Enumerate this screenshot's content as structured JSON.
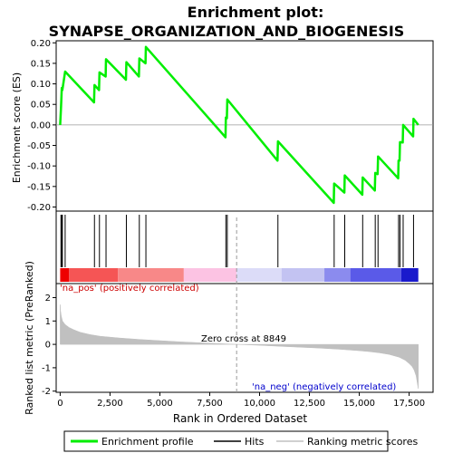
{
  "chart_data": {
    "type": "line",
    "title_line1": "Enrichment plot:",
    "title_line2": "SYNAPSE_ORGANIZATION_AND_BIOGENESIS",
    "es_panel": {
      "ylabel": "Enrichment score (ES)",
      "ylim": [
        -0.21,
        0.205
      ],
      "yticks": [
        "0.20",
        "0.15",
        "0.10",
        "0.05",
        "0.00",
        "-0.05",
        "-0.10",
        "-0.15",
        "-0.20"
      ],
      "ytick_values": [
        0.2,
        0.15,
        0.1,
        0.05,
        0.0,
        -0.05,
        -0.1,
        -0.15,
        -0.2
      ],
      "series_name": "Enrichment profile",
      "color": "#00ee00",
      "x": [
        0,
        40,
        80,
        110,
        250,
        1700,
        1720,
        1950,
        1970,
        2280,
        2300,
        3300,
        3320,
        3950,
        3970,
        4280,
        4300,
        8290,
        8310,
        8360,
        8380,
        10900,
        10920,
        13720,
        13740,
        14250,
        14270,
        15150,
        15170,
        15780,
        15800,
        15920,
        15940,
        16950,
        16970,
        17020,
        17040,
        17180,
        17200,
        17700,
        17720,
        17960
      ],
      "y": [
        0.0,
        0.04,
        0.09,
        0.085,
        0.13,
        0.055,
        0.097,
        0.085,
        0.128,
        0.118,
        0.16,
        0.11,
        0.153,
        0.118,
        0.162,
        0.15,
        0.19,
        -0.03,
        0.018,
        0.016,
        0.062,
        -0.087,
        -0.04,
        -0.19,
        -0.143,
        -0.165,
        -0.123,
        -0.17,
        -0.128,
        -0.16,
        -0.117,
        -0.12,
        -0.077,
        -0.13,
        -0.087,
        -0.087,
        -0.042,
        -0.043,
        0.0,
        -0.028,
        0.015,
        0.0
      ]
    },
    "hits": {
      "label": "Hits",
      "positions": [
        40,
        80,
        110,
        250,
        1720,
        1970,
        2300,
        3320,
        3970,
        4300,
        8310,
        8380,
        10920,
        13740,
        14270,
        15170,
        15800,
        15940,
        16970,
        17040,
        17200,
        17720
      ]
    },
    "color_bar": {
      "segments": [
        {
          "start": 0,
          "end": 450,
          "color": "#ee0000"
        },
        {
          "start": 450,
          "end": 2900,
          "color": "#f55555"
        },
        {
          "start": 2900,
          "end": 6200,
          "color": "#f88888"
        },
        {
          "start": 6200,
          "end": 8849,
          "color": "#fcc3e3"
        },
        {
          "start": 8849,
          "end": 11100,
          "color": "#dcdcf8"
        },
        {
          "start": 11100,
          "end": 13250,
          "color": "#c3c3f2"
        },
        {
          "start": 13250,
          "end": 14550,
          "color": "#8b8bee"
        },
        {
          "start": 14550,
          "end": 17100,
          "color": "#5a5ae8"
        },
        {
          "start": 17100,
          "end": 17960,
          "color": "#1a1acc"
        }
      ]
    },
    "metric_panel": {
      "ylabel": "Ranked list metric (PreRanked)",
      "ylim": [
        -2.05,
        2.6
      ],
      "yticks": [
        "2",
        "1",
        "0",
        "-1",
        "-2"
      ],
      "ytick_values": [
        2,
        1,
        0,
        -1,
        -2
      ],
      "series_name": "Ranking metric scores",
      "fill_color": "#c0c0c0",
      "x": [
        0,
        20,
        60,
        120,
        250,
        450,
        700,
        1000,
        1500,
        2000,
        3000,
        4000,
        5000,
        6000,
        7000,
        8000,
        8849,
        10000,
        11000,
        12000,
        13000,
        14000,
        15000,
        15500,
        16000,
        16500,
        17000,
        17300,
        17500,
        17650,
        17750,
        17850,
        17960
      ],
      "y": [
        1.7,
        1.45,
        1.2,
        1.0,
        0.85,
        0.72,
        0.62,
        0.52,
        0.42,
        0.35,
        0.27,
        0.21,
        0.16,
        0.11,
        0.07,
        0.03,
        0.0,
        -0.04,
        -0.08,
        -0.12,
        -0.16,
        -0.21,
        -0.27,
        -0.31,
        -0.36,
        -0.43,
        -0.55,
        -0.68,
        -0.82,
        -0.95,
        -1.1,
        -1.35,
        -1.9
      ],
      "positive_label": "'na_pos' (positively correlated)",
      "negative_label": "'na_neg' (negatively correlated)",
      "zero_cross_label": "Zero cross at 8849",
      "zero_cross": 8849
    },
    "xaxis": {
      "xlabel": "Rank in Ordered Dataset",
      "xlim": [
        -200,
        18700
      ],
      "xticks": [
        "0",
        "2,500",
        "5,000",
        "7,500",
        "10,000",
        "12,500",
        "15,000",
        "17,500"
      ],
      "xtick_values": [
        0,
        2500,
        5000,
        7500,
        10000,
        12500,
        15000,
        17500
      ]
    },
    "legend": {
      "placement": "bottom",
      "entries": [
        "Enrichment profile",
        "Hits",
        "Ranking metric scores"
      ]
    }
  }
}
